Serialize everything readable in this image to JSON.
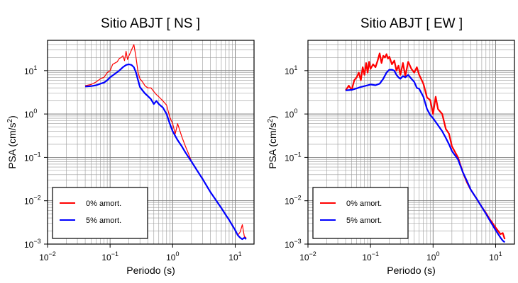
{
  "chart_data": [
    {
      "type": "line",
      "title": "Sitio ABJT [ NS ]",
      "xlabel": "Periodo (s)",
      "ylabel_base": "PSA (cm/s",
      "ylabel_sup": "2",
      "ylabel_tail": ")",
      "xscale": "log",
      "yscale": "log",
      "xlim": [
        0.01,
        20
      ],
      "ylim": [
        0.001,
        50
      ],
      "grid": true,
      "legend_position": "bottom-left",
      "x_ticks": [
        {
          "base": "10",
          "exp": "−2",
          "value": 0.01
        },
        {
          "base": "10",
          "exp": "−1",
          "value": 0.1
        },
        {
          "base": "10",
          "exp": "0",
          "value": 1
        },
        {
          "base": "10",
          "exp": "1",
          "value": 10
        }
      ],
      "y_ticks": [
        {
          "base": "10",
          "exp": "−3",
          "value": 0.001
        },
        {
          "base": "10",
          "exp": "−2",
          "value": 0.01
        },
        {
          "base": "10",
          "exp": "−1",
          "value": 0.1
        },
        {
          "base": "10",
          "exp": "0",
          "value": 1
        },
        {
          "base": "10",
          "exp": "1",
          "value": 10
        }
      ],
      "series": [
        {
          "name": "0% amort.",
          "color": "#ff0000",
          "width": 1.2,
          "x": [
            0.04,
            0.05,
            0.06,
            0.07,
            0.08,
            0.09,
            0.1,
            0.11,
            0.12,
            0.13,
            0.14,
            0.15,
            0.16,
            0.17,
            0.18,
            0.19,
            0.2,
            0.22,
            0.24,
            0.26,
            0.28,
            0.3,
            0.33,
            0.36,
            0.4,
            0.45,
            0.5,
            0.55,
            0.6,
            0.7,
            0.8,
            0.9,
            1.0,
            1.1,
            1.2,
            1.4,
            1.6,
            1.8,
            2.0,
            2.5,
            3.0,
            3.5,
            4.0,
            5.0,
            6.0,
            7.0,
            8.0,
            9.0,
            10.0,
            11.0,
            12.0,
            13.0,
            14.0,
            15.0
          ],
          "y": [
            4.5,
            4.8,
            5.5,
            6.5,
            7.0,
            9.0,
            10.0,
            14.0,
            15.0,
            16.0,
            19.0,
            20.0,
            22.0,
            17.0,
            28.0,
            18.0,
            22.0,
            30.0,
            40.0,
            20.0,
            9.0,
            6.5,
            5.5,
            4.5,
            4.0,
            4.0,
            3.3,
            2.8,
            2.5,
            2.0,
            1.6,
            0.85,
            0.6,
            0.35,
            0.6,
            0.3,
            0.18,
            0.12,
            0.08,
            0.048,
            0.033,
            0.022,
            0.016,
            0.01,
            0.0068,
            0.0048,
            0.0036,
            0.0028,
            0.0021,
            0.0016,
            0.0019,
            0.0028,
            0.0015,
            0.0014
          ]
        },
        {
          "name": "5% amort.",
          "color": "#0000ff",
          "width": 2.2,
          "x": [
            0.04,
            0.05,
            0.06,
            0.07,
            0.08,
            0.09,
            0.1,
            0.12,
            0.14,
            0.16,
            0.18,
            0.2,
            0.22,
            0.24,
            0.26,
            0.28,
            0.3,
            0.33,
            0.36,
            0.4,
            0.45,
            0.5,
            0.55,
            0.6,
            0.7,
            0.8,
            0.9,
            1.0,
            1.2,
            1.4,
            1.6,
            1.8,
            2.0,
            2.5,
            3.0,
            3.5,
            4.0,
            5.0,
            6.0,
            7.0,
            8.0,
            9.0,
            10.0,
            11.0,
            12.0,
            13.0,
            14.0,
            15.0
          ],
          "y": [
            4.3,
            4.4,
            4.6,
            5.0,
            5.3,
            6.0,
            7.0,
            8.5,
            10.0,
            12.0,
            13.5,
            14.0,
            13.5,
            12.0,
            9.0,
            6.0,
            4.2,
            3.5,
            3.0,
            2.6,
            2.2,
            1.7,
            2.0,
            1.7,
            1.4,
            1.0,
            0.6,
            0.4,
            0.25,
            0.18,
            0.13,
            0.1,
            0.08,
            0.048,
            0.032,
            0.022,
            0.016,
            0.01,
            0.0068,
            0.0048,
            0.0036,
            0.0027,
            0.0021,
            0.0016,
            0.0014,
            0.0013,
            0.0014,
            0.0013
          ]
        }
      ]
    },
    {
      "type": "line",
      "title": "Sitio ABJT [ EW ]",
      "xlabel": "Periodo (s)",
      "ylabel_base": "PSA (cm/s",
      "ylabel_sup": "2",
      "ylabel_tail": ")",
      "xscale": "log",
      "yscale": "log",
      "xlim": [
        0.01,
        20
      ],
      "ylim": [
        0.001,
        50
      ],
      "grid": true,
      "legend_position": "bottom-left",
      "x_ticks": [
        {
          "base": "10",
          "exp": "−2",
          "value": 0.01
        },
        {
          "base": "10",
          "exp": "−1",
          "value": 0.1
        },
        {
          "base": "10",
          "exp": "0",
          "value": 1
        },
        {
          "base": "10",
          "exp": "1",
          "value": 10
        }
      ],
      "y_ticks": [
        {
          "base": "10",
          "exp": "−3",
          "value": 0.001
        },
        {
          "base": "10",
          "exp": "−2",
          "value": 0.01
        },
        {
          "base": "10",
          "exp": "−1",
          "value": 0.1
        },
        {
          "base": "10",
          "exp": "0",
          "value": 1
        },
        {
          "base": "10",
          "exp": "1",
          "value": 10
        }
      ],
      "series": [
        {
          "name": "0% amort.",
          "color": "#ff0000",
          "width": 2.2,
          "x": [
            0.04,
            0.045,
            0.05,
            0.055,
            0.06,
            0.065,
            0.07,
            0.075,
            0.08,
            0.085,
            0.09,
            0.095,
            0.1,
            0.11,
            0.12,
            0.13,
            0.14,
            0.15,
            0.16,
            0.17,
            0.18,
            0.19,
            0.2,
            0.22,
            0.24,
            0.26,
            0.28,
            0.3,
            0.33,
            0.36,
            0.4,
            0.45,
            0.5,
            0.55,
            0.6,
            0.7,
            0.8,
            0.9,
            1.0,
            1.1,
            1.2,
            1.4,
            1.6,
            1.8,
            2.0,
            2.5,
            3.0,
            3.5,
            4.0,
            5.0,
            6.0,
            7.0,
            8.0,
            9.0,
            10.0,
            11.0,
            12.0,
            13.0,
            14.0
          ],
          "y": [
            3.5,
            4.5,
            3.6,
            6.0,
            7.0,
            9.0,
            6.0,
            12.0,
            8.0,
            15.0,
            9.0,
            16.0,
            11.0,
            14.0,
            12.0,
            17.0,
            25.0,
            15.0,
            22.0,
            20.0,
            24.0,
            19.0,
            21.0,
            14.0,
            17.0,
            10.0,
            13.0,
            8.0,
            15.0,
            7.5,
            16.0,
            11.0,
            9.0,
            12.0,
            8.0,
            5.0,
            2.4,
            2.1,
            1.0,
            2.5,
            1.3,
            1.0,
            0.45,
            0.35,
            0.18,
            0.1,
            0.045,
            0.026,
            0.018,
            0.011,
            0.0072,
            0.0052,
            0.0038,
            0.003,
            0.0024,
            0.002,
            0.0017,
            0.0018,
            0.0013
          ]
        },
        {
          "name": "5% amort.",
          "color": "#0000ff",
          "width": 2.2,
          "x": [
            0.04,
            0.05,
            0.06,
            0.07,
            0.08,
            0.09,
            0.1,
            0.12,
            0.14,
            0.16,
            0.18,
            0.2,
            0.22,
            0.24,
            0.26,
            0.28,
            0.3,
            0.33,
            0.36,
            0.4,
            0.45,
            0.5,
            0.55,
            0.6,
            0.7,
            0.8,
            0.9,
            1.0,
            1.2,
            1.4,
            1.6,
            1.8,
            2.0,
            2.5,
            3.0,
            3.5,
            4.0,
            5.0,
            6.0,
            7.0,
            8.0,
            9.0,
            10.0,
            11.0,
            12.0,
            13.0,
            14.0
          ],
          "y": [
            3.5,
            3.6,
            3.9,
            4.2,
            4.4,
            4.6,
            4.8,
            4.6,
            5.0,
            6.5,
            9.0,
            10.5,
            10.5,
            10.0,
            8.0,
            7.0,
            6.5,
            7.5,
            7.0,
            8.0,
            6.5,
            5.5,
            4.0,
            3.8,
            2.5,
            1.3,
            0.95,
            0.8,
            0.55,
            0.4,
            0.28,
            0.2,
            0.14,
            0.09,
            0.045,
            0.028,
            0.018,
            0.011,
            0.0072,
            0.005,
            0.0036,
            0.0027,
            0.0021,
            0.0017,
            0.0014,
            0.0012,
            0.0011
          ]
        }
      ]
    }
  ]
}
